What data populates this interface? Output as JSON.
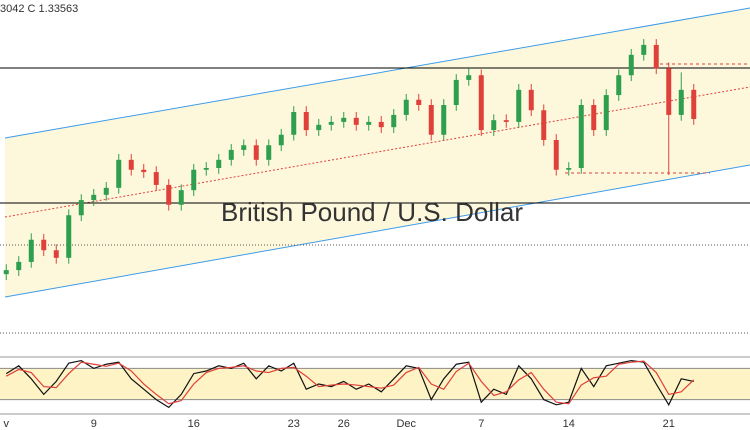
{
  "header": {
    "ohlc_text": "3042  C 1.33563"
  },
  "chart_data": [
    {
      "type": "candlestick",
      "watermark": "British Pound / U.S. Dollar",
      "categories": [
        "v",
        null,
        null,
        null,
        null,
        null,
        null,
        "9",
        null,
        null,
        null,
        null,
        null,
        null,
        null,
        "16",
        null,
        null,
        null,
        null,
        null,
        null,
        null,
        "23",
        null,
        null,
        null,
        "26",
        null,
        null,
        null,
        null,
        "Dec",
        null,
        null,
        null,
        null,
        null,
        "7",
        null,
        null,
        null,
        null,
        null,
        null,
        "14",
        null,
        null,
        null,
        null,
        null,
        null,
        null,
        "21",
        null,
        null
      ],
      "open": [
        1.309,
        1.3097,
        1.3111,
        1.3149,
        1.3131,
        1.3118,
        1.3191,
        1.3217,
        1.3226,
        1.3238,
        1.3286,
        1.3269,
        1.3265,
        1.3243,
        1.3209,
        1.3234,
        1.3269,
        1.3272,
        1.3286,
        1.3303,
        1.3311,
        1.3286,
        1.3311,
        1.3329,
        1.3368,
        1.3337,
        1.3346,
        1.3351,
        1.3358,
        1.3346,
        1.3351,
        1.3342,
        1.3363,
        1.3389,
        1.338,
        1.3329,
        1.338,
        1.3423,
        1.3431,
        1.3337,
        1.3354,
        1.3351,
        1.3406,
        1.3371,
        1.332,
        1.3269,
        1.3272,
        1.338,
        1.3337,
        1.3397,
        1.3431,
        1.3466,
        1.3483,
        1.3443,
        1.3363,
        1.3406
      ],
      "high": [
        1.3107,
        1.3121,
        1.316,
        1.3159,
        1.3141,
        1.3201,
        1.3227,
        1.3236,
        1.3248,
        1.3296,
        1.3296,
        1.3279,
        1.3275,
        1.3253,
        1.3244,
        1.3279,
        1.3282,
        1.3296,
        1.3313,
        1.3321,
        1.3321,
        1.3321,
        1.3339,
        1.3378,
        1.3378,
        1.3356,
        1.3361,
        1.3368,
        1.3368,
        1.3361,
        1.3361,
        1.3373,
        1.3399,
        1.3399,
        1.339,
        1.339,
        1.3433,
        1.3443,
        1.3441,
        1.3364,
        1.3364,
        1.3416,
        1.3416,
        1.3381,
        1.333,
        1.3282,
        1.339,
        1.339,
        1.3407,
        1.3441,
        1.3476,
        1.3493,
        1.3493,
        1.3453,
        1.3436,
        1.3416
      ],
      "low": [
        1.308,
        1.3087,
        1.3101,
        1.3121,
        1.3108,
        1.3108,
        1.3181,
        1.3207,
        1.3216,
        1.3228,
        1.3259,
        1.3255,
        1.3233,
        1.3199,
        1.3199,
        1.3224,
        1.3259,
        1.3262,
        1.3276,
        1.3293,
        1.3276,
        1.3276,
        1.3301,
        1.3319,
        1.3327,
        1.3327,
        1.3336,
        1.3341,
        1.3336,
        1.3336,
        1.3332,
        1.3332,
        1.3353,
        1.337,
        1.3319,
        1.3319,
        1.337,
        1.3413,
        1.3327,
        1.3327,
        1.3341,
        1.3341,
        1.3361,
        1.331,
        1.3259,
        1.3259,
        1.3262,
        1.3327,
        1.3327,
        1.3387,
        1.3421,
        1.3456,
        1.3433,
        1.326,
        1.3353,
        1.3346
      ],
      "close": [
        1.3097,
        1.3111,
        1.3149,
        1.3131,
        1.3118,
        1.3191,
        1.3217,
        1.3226,
        1.3238,
        1.3286,
        1.3269,
        1.3265,
        1.3243,
        1.3209,
        1.3234,
        1.3269,
        1.3272,
        1.3286,
        1.3303,
        1.3311,
        1.3286,
        1.3311,
        1.3329,
        1.3368,
        1.3337,
        1.3346,
        1.3351,
        1.3358,
        1.3346,
        1.3351,
        1.3342,
        1.3363,
        1.3389,
        1.338,
        1.3329,
        1.338,
        1.3423,
        1.3431,
        1.3337,
        1.3354,
        1.3351,
        1.3406,
        1.3371,
        1.332,
        1.3269,
        1.3272,
        1.338,
        1.3337,
        1.3397,
        1.3431,
        1.3466,
        1.3483,
        1.3443,
        1.3363,
        1.3406,
        1.3356
      ],
      "up_color": "#2e9e4f",
      "down_color": "#e0403a",
      "ylim": [
        1.296,
        1.356
      ]
    },
    {
      "type": "line",
      "ylim": [
        0,
        100
      ],
      "bands": [
        20,
        80
      ],
      "band_color": "#fdf3c4",
      "series": [
        {
          "color": "#111111",
          "values": [
            70,
            85,
            60,
            30,
            55,
            90,
            95,
            80,
            88,
            92,
            60,
            40,
            20,
            5,
            30,
            70,
            75,
            85,
            80,
            90,
            60,
            85,
            75,
            90,
            40,
            50,
            45,
            55,
            40,
            50,
            35,
            60,
            85,
            80,
            20,
            60,
            88,
            92,
            15,
            40,
            30,
            85,
            60,
            20,
            10,
            15,
            80,
            45,
            85,
            90,
            95,
            92,
            50,
            10,
            60,
            55
          ]
        },
        {
          "color": "#e0403a",
          "values": [
            65,
            78,
            72,
            45,
            43,
            70,
            92,
            88,
            84,
            90,
            75,
            50,
            30,
            12,
            18,
            50,
            72,
            80,
            82,
            85,
            75,
            72,
            80,
            82,
            65,
            45,
            48,
            50,
            48,
            45,
            42,
            48,
            72,
            82,
            50,
            40,
            74,
            90,
            55,
            28,
            35,
            58,
            72,
            40,
            15,
            12,
            48,
            62,
            65,
            88,
            92,
            94,
            72,
            30,
            35,
            58
          ]
        }
      ]
    }
  ]
}
